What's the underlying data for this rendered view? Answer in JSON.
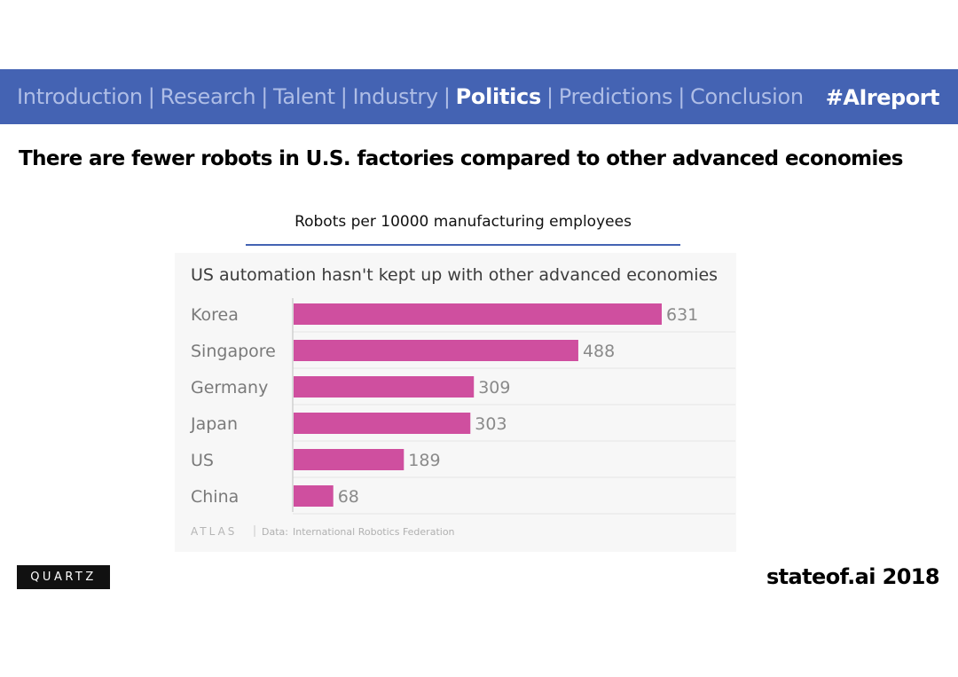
{
  "nav": {
    "items": [
      {
        "label": "Introduction",
        "active": false
      },
      {
        "label": "Research",
        "active": false
      },
      {
        "label": "Talent",
        "active": false
      },
      {
        "label": "Industry",
        "active": false
      },
      {
        "label": "Politics",
        "active": true
      },
      {
        "label": "Predictions",
        "active": false
      },
      {
        "label": "Conclusion",
        "active": false
      }
    ],
    "separator": "|",
    "hashtag": "#AIreport"
  },
  "slide": {
    "title": "There are fewer robots in U.S. factories compared to other advanced economies",
    "caption": "Robots per 10000 manufacturing employees"
  },
  "chart_data": {
    "type": "bar",
    "orientation": "horizontal",
    "title": "US automation hasn't kept up with other advanced economies",
    "categories": [
      "Korea",
      "Singapore",
      "Germany",
      "Japan",
      "US",
      "China"
    ],
    "values": [
      631,
      488,
      309,
      303,
      189,
      68
    ],
    "bar_color": "#cf4f9f",
    "xlim": [
      0,
      631
    ],
    "grid": true,
    "source_brand": "ATLAS",
    "source_label": "Data:",
    "source_text": "International Robotics Federation"
  },
  "footer": {
    "publisher": "QUARTZ",
    "brand": "stateof.ai 2018"
  },
  "colors": {
    "nav_background": "#4463b3",
    "nav_inactive": "#aebde6",
    "nav_active": "#ffffff",
    "accent_rule": "#4463b3"
  }
}
